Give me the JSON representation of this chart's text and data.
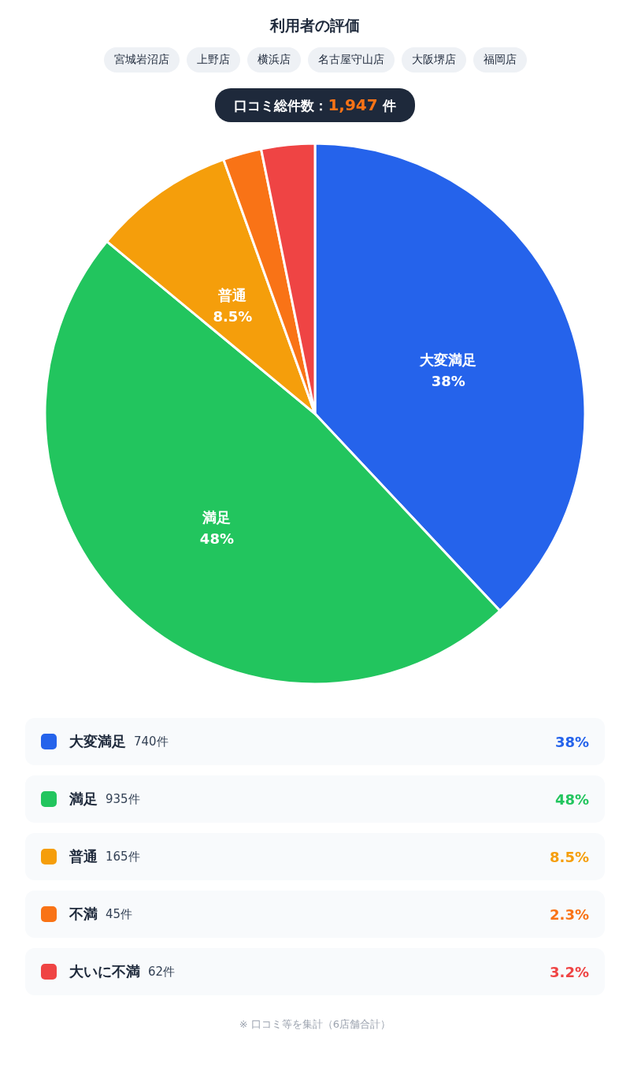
{
  "chart_data": {
    "type": "pie",
    "title": "利用者の評価",
    "categories": [
      "大変満足",
      "満足",
      "普通",
      "不満",
      "大いに不満"
    ],
    "values": [
      38,
      48,
      8.5,
      2.3,
      3.2
    ],
    "colors": [
      "#2563eb",
      "#22c55e",
      "#f59e0b",
      "#f97316",
      "#ef4444"
    ],
    "value_labels": [
      "38%",
      "48%",
      "8.5%",
      "2.3%",
      "3.2%"
    ],
    "legend": "bottom",
    "annotations": [
      "宮城岩沼店",
      "上野店",
      "横浜店",
      "名古屋守山店",
      "大阪堺店",
      "福岡店",
      "口コミ総件数：1,947 件",
      "740件",
      "935件",
      "165件",
      "45件",
      "62件",
      "※ 口コミ等を集計（6店舗合計）"
    ]
  }
}
